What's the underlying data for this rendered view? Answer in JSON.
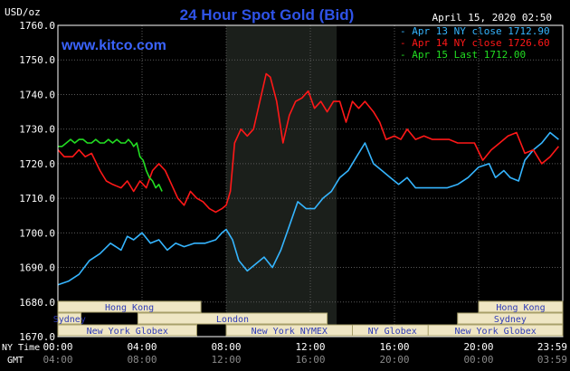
{
  "chart_data": {
    "type": "line",
    "title": "24 Hour Spot Gold (Bid)",
    "watermark": "www.kitco.com",
    "timestamp": "April 15, 2020 02:50",
    "ylabel": "USD/oz",
    "ylim": [
      1670,
      1760
    ],
    "yticks": [
      "1760.0",
      "1750.0",
      "1740.0",
      "1730.0",
      "1720.0",
      "1710.0",
      "1700.0",
      "1690.0",
      "1680.0",
      "1670.0"
    ],
    "xlim_hours": [
      0,
      24
    ],
    "x_axis_label": "NY Time",
    "gmt_label": "GMT",
    "xticks_ny": [
      "00:00",
      "04:00",
      "08:00",
      "12:00",
      "16:00",
      "20:00",
      "23:59"
    ],
    "xticks_gmt": [
      "04:00",
      "08:00",
      "12:00",
      "16:00",
      "20:00",
      "00:00",
      "03:59"
    ],
    "shaded_region_hours": [
      8.0,
      13.25
    ],
    "colors": {
      "background": "#000000",
      "grid": "#595959",
      "shade": "#1b1f1b",
      "title": "#2f53e8",
      "watermark": "#3b64ff",
      "text": "#ffffff",
      "sessions_fill": "#efe6c4",
      "sessions_stroke": "#a8a06a",
      "sessions_text": "#2f3bb6"
    },
    "series": [
      {
        "name": "Apr 13 NY close 1712.90",
        "color": "#35b5ff",
        "x": [
          0,
          0.5,
          1,
          1.5,
          2,
          2.5,
          3,
          3.3,
          3.6,
          4,
          4.4,
          4.8,
          5.2,
          5.6,
          6,
          6.5,
          7,
          7.5,
          7.8,
          8,
          8.3,
          8.6,
          9,
          9.4,
          9.8,
          10.2,
          10.6,
          11,
          11.4,
          11.8,
          12.2,
          12.6,
          13,
          13.4,
          13.8,
          14.2,
          14.6,
          15,
          15.4,
          15.8,
          16.2,
          16.6,
          17,
          17.5,
          18,
          18.5,
          19,
          19.5,
          20,
          20.5,
          20.8,
          21.2,
          21.5,
          21.9,
          22.2,
          22.6,
          23,
          23.4,
          23.8
        ],
        "y": [
          1685,
          1686,
          1688,
          1692,
          1694,
          1697,
          1695,
          1699,
          1698,
          1700,
          1697,
          1698,
          1695,
          1697,
          1696,
          1697,
          1697,
          1698,
          1700,
          1701,
          1698,
          1692,
          1689,
          1691,
          1693,
          1690,
          1695,
          1702,
          1709,
          1707,
          1707,
          1710,
          1712,
          1716,
          1718,
          1722,
          1726,
          1720,
          1718,
          1716,
          1714,
          1716,
          1713,
          1713,
          1713,
          1713,
          1714,
          1716,
          1719,
          1720,
          1716,
          1718,
          1716,
          1715,
          1721,
          1724,
          1726,
          1729,
          1727
        ]
      },
      {
        "name": "Apr 14 NY close 1726.60",
        "color": "#ff1818",
        "x": [
          0,
          0.3,
          0.7,
          1,
          1.3,
          1.6,
          2,
          2.3,
          2.6,
          3,
          3.3,
          3.6,
          3.9,
          4.2,
          4.5,
          4.8,
          5.1,
          5.4,
          5.7,
          6,
          6.3,
          6.6,
          6.9,
          7.2,
          7.5,
          7.8,
          8,
          8.2,
          8.4,
          8.7,
          9,
          9.3,
          9.6,
          9.9,
          10.1,
          10.4,
          10.7,
          11,
          11.3,
          11.6,
          11.9,
          12.2,
          12.5,
          12.8,
          13.1,
          13.4,
          13.7,
          14,
          14.3,
          14.6,
          15,
          15.3,
          15.6,
          16,
          16.3,
          16.6,
          17,
          17.4,
          17.8,
          18.2,
          18.6,
          19,
          19.4,
          19.8,
          20.2,
          20.6,
          21,
          21.4,
          21.8,
          22.2,
          22.6,
          23,
          23.4,
          23.8
        ],
        "y": [
          1724,
          1722,
          1722,
          1724,
          1722,
          1723,
          1718,
          1715,
          1714,
          1713,
          1715,
          1712,
          1715,
          1713,
          1718,
          1720,
          1718,
          1714,
          1710,
          1708,
          1712,
          1710,
          1709,
          1707,
          1706,
          1707,
          1708,
          1712,
          1726,
          1730,
          1728,
          1730,
          1738,
          1746,
          1745,
          1738,
          1726,
          1734,
          1738,
          1739,
          1741,
          1736,
          1738,
          1735,
          1738,
          1738,
          1732,
          1738,
          1736,
          1738,
          1735,
          1732,
          1727,
          1728,
          1727,
          1730,
          1727,
          1728,
          1727,
          1727,
          1727,
          1726,
          1726,
          1726,
          1721,
          1724,
          1726,
          1728,
          1729,
          1723,
          1724,
          1720,
          1722,
          1725
        ]
      },
      {
        "name": "Apr 15 Last 1712.00",
        "color": "#22dd22",
        "x": [
          0,
          0.2,
          0.4,
          0.6,
          0.8,
          1,
          1.2,
          1.4,
          1.6,
          1.8,
          2,
          2.2,
          2.4,
          2.6,
          2.8,
          3,
          3.2,
          3.35,
          3.5,
          3.6,
          3.75,
          3.9,
          4.05,
          4.2,
          4.35,
          4.5,
          4.65,
          4.8,
          4.95
        ],
        "y": [
          1725,
          1725,
          1726,
          1727,
          1726,
          1727,
          1727,
          1726,
          1726,
          1727,
          1726,
          1726,
          1727,
          1726,
          1727,
          1726,
          1726,
          1727,
          1726,
          1725,
          1726,
          1722,
          1721,
          1718,
          1716,
          1715,
          1713,
          1714,
          1712
        ]
      }
    ],
    "sessions": [
      {
        "name": "Hong Kong",
        "start": 0.0,
        "end": 6.8,
        "row": 0
      },
      {
        "name": "Sydney",
        "start": 0.0,
        "end": 1.1,
        "row": 1
      },
      {
        "name": "London",
        "start": 3.8,
        "end": 12.8,
        "row": 1
      },
      {
        "name": "New York Globex",
        "start": 0.0,
        "end": 6.6,
        "row": 2
      },
      {
        "name": "New York NYMEX",
        "start": 8.0,
        "end": 14.0,
        "row": 2
      },
      {
        "name": "NY Globex",
        "start": 14.0,
        "end": 17.8,
        "row": 2
      },
      {
        "name": "Hong Kong",
        "start": 20.0,
        "end": 24.0,
        "row": 0
      },
      {
        "name": "Sydney",
        "start": 19.0,
        "end": 24.0,
        "row": 1
      },
      {
        "name": "New York Globex",
        "start": 17.6,
        "end": 24.0,
        "row": 2
      }
    ]
  }
}
